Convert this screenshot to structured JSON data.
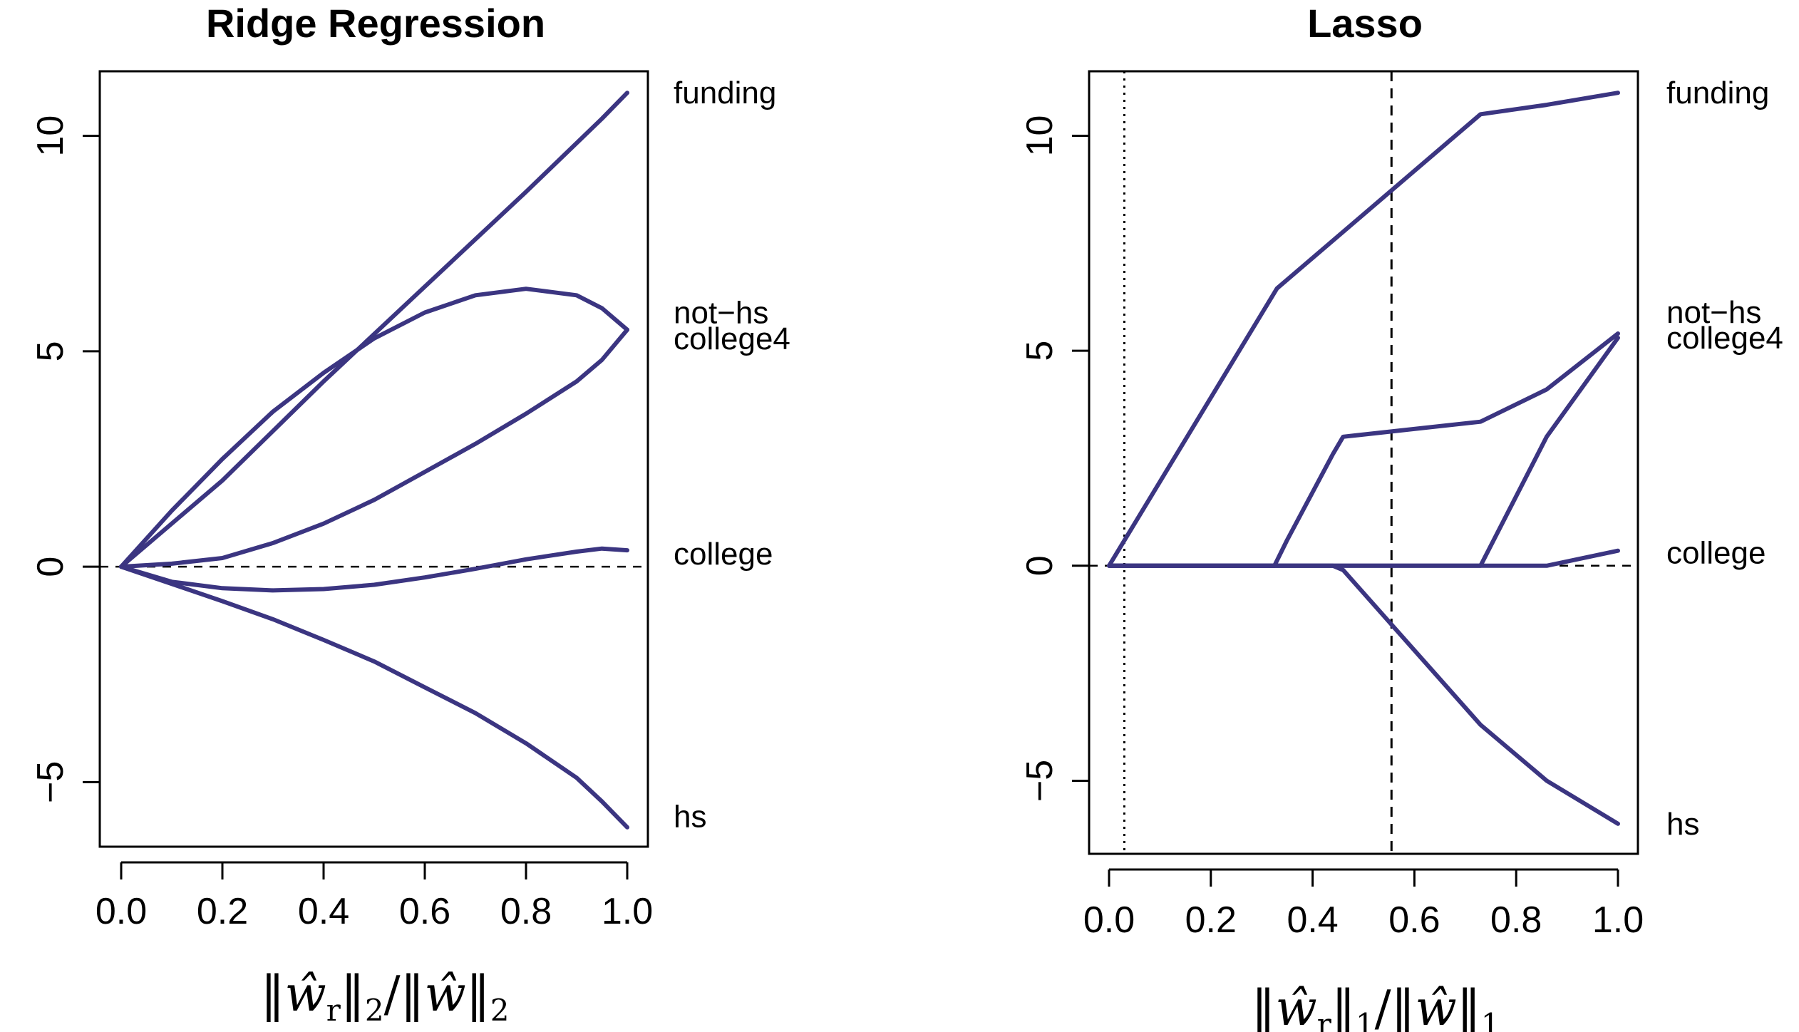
{
  "colors": {
    "line": "#3b3581",
    "axis": "#000000",
    "background": "#ffffff"
  },
  "chart_data": [
    {
      "type": "line",
      "title": "Ridge Regression",
      "xlabel": "‖ŵ_r‖_2/‖ŵ‖_2",
      "xlabel_parts": {
        "open": "‖",
        "w": "ŵ",
        "r": "r",
        "norm_mid": "‖",
        "sub": "2",
        "slash": "/‖",
        "w2": "ŵ",
        "close": "‖",
        "sub2": "2"
      },
      "ylabel": "",
      "xlim": [
        0.0,
        1.0
      ],
      "ylim": [
        -6.5,
        11.5
      ],
      "xticks": [
        0.0,
        0.2,
        0.4,
        0.6,
        0.8,
        1.0
      ],
      "xtick_labels": [
        "0.0",
        "0.2",
        "0.4",
        "0.6",
        "0.8",
        "1.0"
      ],
      "yticks": [
        -5,
        0,
        5,
        10
      ],
      "ytick_labels": [
        "−5",
        "0",
        "5",
        "10"
      ],
      "zero_line": true,
      "grid": false,
      "series": [
        {
          "name": "funding",
          "x": [
            0.0,
            0.2,
            0.4,
            0.6,
            0.8,
            0.95,
            1.0
          ],
          "y": [
            0.0,
            2.0,
            4.3,
            6.5,
            8.7,
            10.4,
            11.0
          ],
          "label_y": 11.0
        },
        {
          "name": "not−hs",
          "x": [
            0.0,
            0.1,
            0.2,
            0.3,
            0.4,
            0.5,
            0.6,
            0.7,
            0.8,
            0.9,
            0.95,
            1.0
          ],
          "y": [
            0.0,
            1.3,
            2.5,
            3.6,
            4.5,
            5.3,
            5.9,
            6.3,
            6.45,
            6.3,
            6.0,
            5.5
          ],
          "label_y": 5.9
        },
        {
          "name": "college4",
          "x": [
            0.0,
            0.1,
            0.2,
            0.3,
            0.4,
            0.5,
            0.6,
            0.7,
            0.8,
            0.9,
            0.95,
            1.0
          ],
          "y": [
            0.0,
            0.07,
            0.2,
            0.55,
            1.0,
            1.55,
            2.2,
            2.85,
            3.55,
            4.3,
            4.8,
            5.5
          ],
          "label_y": 5.3
        },
        {
          "name": "college",
          "x": [
            0.0,
            0.1,
            0.2,
            0.3,
            0.4,
            0.5,
            0.6,
            0.7,
            0.8,
            0.9,
            0.95,
            1.0
          ],
          "y": [
            0.0,
            -0.35,
            -0.5,
            -0.55,
            -0.52,
            -0.42,
            -0.25,
            -0.05,
            0.17,
            0.35,
            0.42,
            0.38
          ],
          "label_y": 0.3
        },
        {
          "name": "hs",
          "x": [
            0.0,
            0.1,
            0.2,
            0.3,
            0.4,
            0.5,
            0.6,
            0.7,
            0.8,
            0.9,
            0.95,
            1.0
          ],
          "y": [
            0.0,
            -0.4,
            -0.8,
            -1.22,
            -1.7,
            -2.2,
            -2.8,
            -3.4,
            -4.1,
            -4.9,
            -5.45,
            -6.05
          ],
          "label_y": -5.8
        }
      ]
    },
    {
      "type": "line",
      "title": "Lasso",
      "xlabel": "‖ŵ_r‖_1/‖ŵ‖_1",
      "xlabel_parts": {
        "open": "‖",
        "w": "ŵ",
        "r": "r",
        "norm_mid": "‖",
        "sub": "1",
        "slash": "/‖",
        "w2": "ŵ",
        "close": "‖",
        "sub2": "1"
      },
      "ylabel": "",
      "xlim": [
        0.0,
        1.0
      ],
      "ylim": [
        -6.7,
        11.5
      ],
      "xticks": [
        0.0,
        0.2,
        0.4,
        0.6,
        0.8,
        1.0
      ],
      "xtick_labels": [
        "0.0",
        "0.2",
        "0.4",
        "0.6",
        "0.8",
        "1.0"
      ],
      "yticks": [
        -5,
        0,
        5,
        10
      ],
      "ytick_labels": [
        "−5",
        "0",
        "5",
        "10"
      ],
      "zero_line": true,
      "grid": false,
      "vlines": [
        {
          "x": 0.03,
          "style": "dotted"
        },
        {
          "x": 0.555,
          "style": "dashed"
        }
      ],
      "series": [
        {
          "name": "funding",
          "x": [
            0.0,
            0.33,
            0.73,
            0.86,
            1.0
          ],
          "y": [
            0.0,
            6.45,
            10.5,
            10.72,
            11.0
          ],
          "label_y": 11.0
        },
        {
          "name": "not−hs",
          "x": [
            0.0,
            0.325,
            0.35,
            0.44,
            0.46,
            0.73,
            0.86,
            1.0
          ],
          "y": [
            0.0,
            0.0,
            0.6,
            2.6,
            3.0,
            3.35,
            4.1,
            5.4
          ],
          "label_y": 5.9
        },
        {
          "name": "college4",
          "x": [
            0.0,
            0.73,
            0.86,
            1.0
          ],
          "y": [
            0.0,
            0.0,
            3.0,
            5.3
          ],
          "label_y": 5.3
        },
        {
          "name": "college",
          "x": [
            0.0,
            0.86,
            1.0
          ],
          "y": [
            0.0,
            0.0,
            0.35
          ],
          "label_y": 0.3
        },
        {
          "name": "hs",
          "x": [
            0.0,
            0.44,
            0.46,
            0.73,
            0.86,
            1.0
          ],
          "y": [
            0.0,
            0.0,
            -0.1,
            -3.7,
            -5.0,
            -6.0
          ],
          "label_y": -6.0
        }
      ]
    }
  ]
}
